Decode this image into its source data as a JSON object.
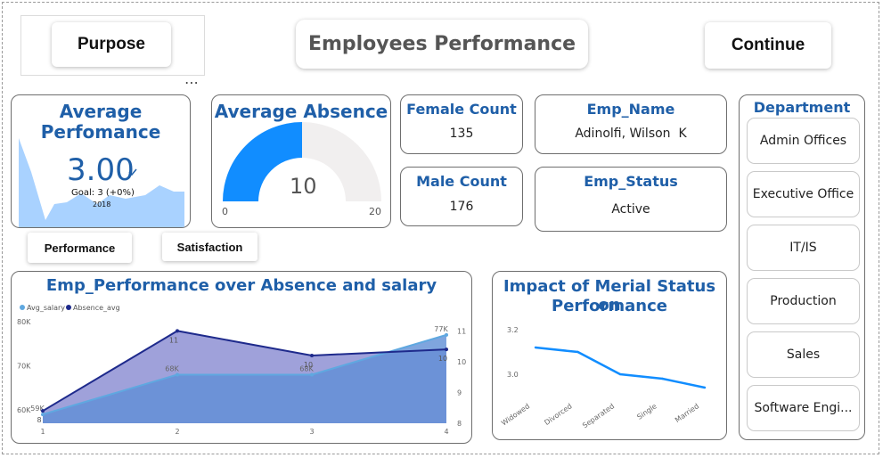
{
  "header": {
    "title": "Employees Performance",
    "purpose_label": "Purpose",
    "continue_label": "Continue",
    "more_icon": "⋯"
  },
  "avg_performance": {
    "title_line1": "Average",
    "title_line2": "Perfomance",
    "value": "3.00",
    "goal": "Goal: 3 (+0%)",
    "year": "2018",
    "check_icon": "check-icon"
  },
  "avg_absence": {
    "title": "Average Absence",
    "value": "10",
    "min": "0",
    "max": "20",
    "value_num": 10,
    "max_num": 20,
    "fill_color": "#118dff",
    "track_color": "#f1efef"
  },
  "female": {
    "title": "Female Count",
    "value": "135"
  },
  "male": {
    "title": "Male Count",
    "value": "176"
  },
  "emp_name": {
    "title": "Emp_Name",
    "value": "Adinolfi, Wilson  K"
  },
  "emp_status": {
    "title": "Emp_Status",
    "value": "Active"
  },
  "tabs": {
    "performance": "Performance",
    "satisfaction": "Satisfaction"
  },
  "department": {
    "title": "Department",
    "items": [
      "Admin Offices",
      "Executive Office",
      "IT/IS",
      "Production",
      "Sales",
      "Software Engi..."
    ]
  },
  "colors": {
    "accent": "#1f5fa8",
    "series_salary": "#5fa8e0",
    "series_absence": "#1e2a8c"
  },
  "chart_data": [
    {
      "type": "area",
      "title": "Emp_Performance over Absence and salary",
      "legend": [
        "Avg_salary",
        "Absence_avg"
      ],
      "x": [
        1,
        2,
        3,
        4
      ],
      "x_ticks": [
        "1",
        "2",
        "3",
        "4"
      ],
      "y_left_ticks": [
        "60K",
        "70K",
        "80K"
      ],
      "y_right_ticks": [
        "8",
        "9",
        "10",
        "11"
      ],
      "ylim_left": [
        57,
        80
      ],
      "ylim_right": [
        8,
        11.3
      ],
      "series": [
        {
          "name": "Avg_salary",
          "axis": "left",
          "values": [
            59,
            68,
            68,
            77
          ],
          "labels": [
            "59K",
            "68K",
            "68K",
            "77K"
          ]
        },
        {
          "name": "Absence_avg",
          "axis": "right",
          "values": [
            8.4,
            11,
            10.2,
            10.4
          ],
          "labels": [
            "8",
            "11",
            "10",
            "10"
          ]
        }
      ]
    },
    {
      "type": "line",
      "title_line1": "Impact of Merial Status on",
      "title_line2": "Performance",
      "categories": [
        "Widowed",
        "Divorced",
        "Separated",
        "Single",
        "Married"
      ],
      "values": [
        3.12,
        3.1,
        3.0,
        2.98,
        2.94
      ],
      "y_ticks": [
        "3.0",
        "3.2"
      ],
      "ylim": [
        2.9,
        3.22
      ]
    }
  ]
}
